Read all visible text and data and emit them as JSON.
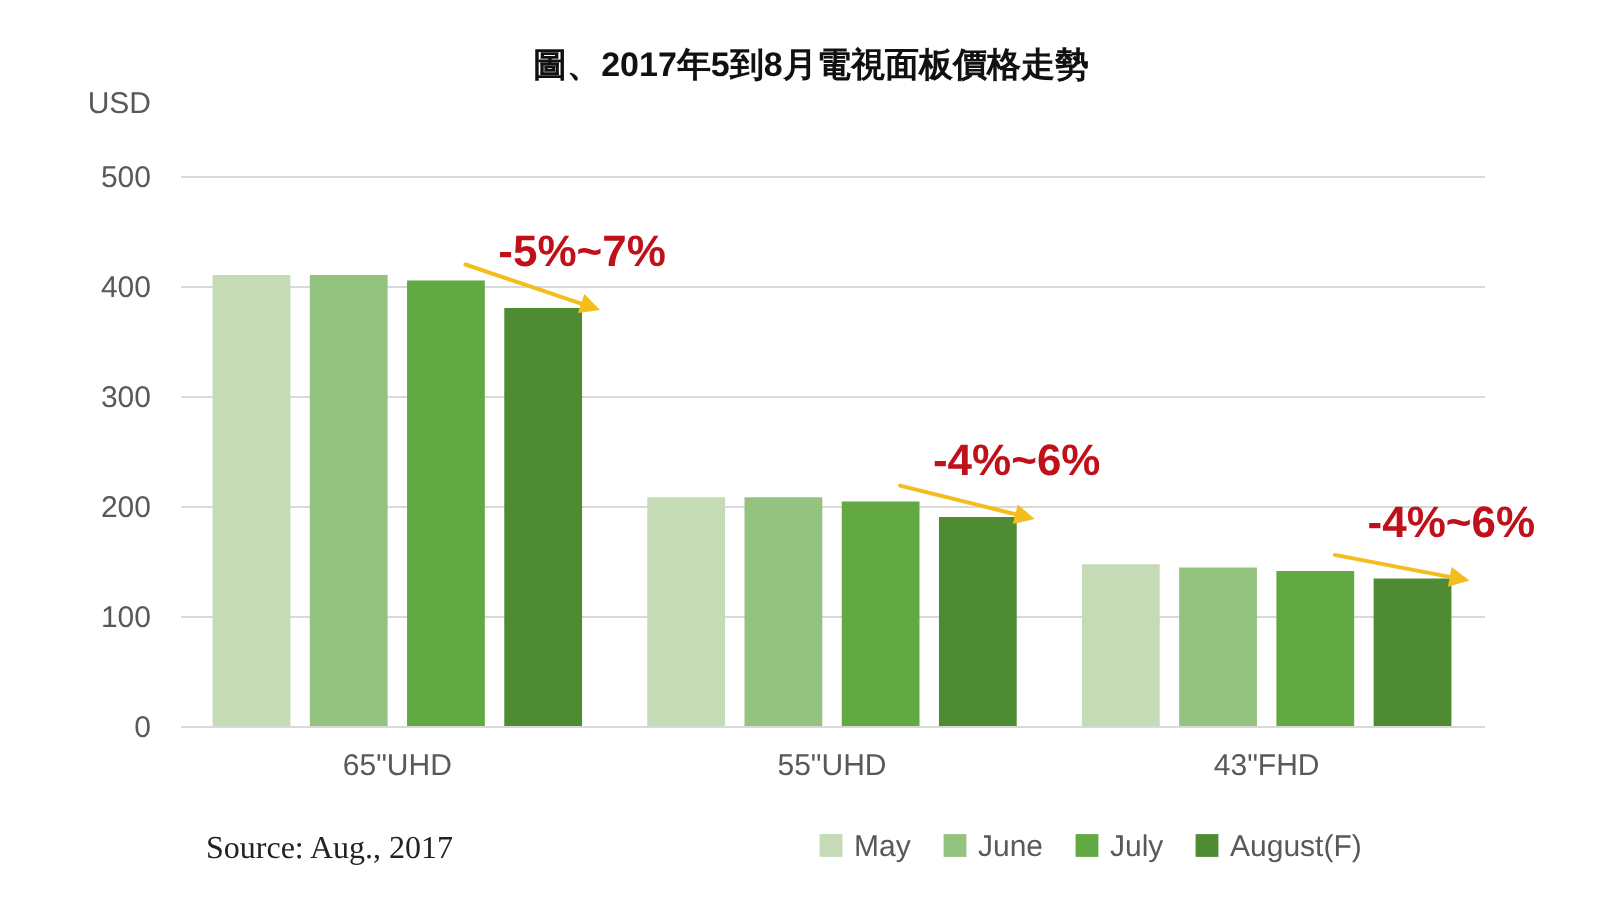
{
  "chart_data": {
    "type": "bar",
    "title": "圖、2017年5到8月電視面板價格走勢",
    "ylabel": "USD",
    "categories": [
      "65\"UHD",
      "55\"UHD",
      "43\"FHD"
    ],
    "series": [
      {
        "name": "May",
        "color": "#c4dbb6",
        "values": [
          410,
          208,
          147
        ]
      },
      {
        "name": "June",
        "color": "#94c27f",
        "values": [
          410,
          208,
          144
        ]
      },
      {
        "name": "July",
        "color": "#62a843",
        "values": [
          405,
          204,
          141
        ]
      },
      {
        "name": "August(F)",
        "color": "#4f8b33",
        "values": [
          380,
          190,
          134
        ]
      }
    ],
    "ylim": [
      0,
      500
    ],
    "yticks": [
      0,
      100,
      200,
      300,
      400,
      500
    ],
    "grid": "y",
    "legend": "bottom",
    "annotations": [
      {
        "text": "-5%~7%",
        "x": "65\"UHD",
        "y": 380
      },
      {
        "text": "-4%~6%",
        "x": "55\"UHD",
        "y": 190
      },
      {
        "text": "-4%~6%",
        "x": "43\"FHD",
        "y": 134
      },
      "Source: Aug., 2017"
    ]
  }
}
